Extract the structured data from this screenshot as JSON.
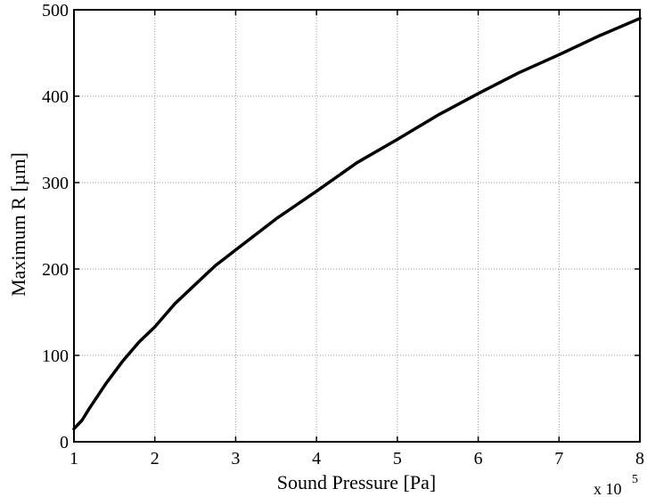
{
  "chart_data": {
    "type": "line",
    "title": "",
    "xlabel": "Sound Pressure [Pa]",
    "ylabel": "Maximum R [µm]",
    "x_multiplier_prefix": "x 10",
    "x_multiplier_exponent": "5",
    "xlim": [
      1,
      8
    ],
    "ylim": [
      0,
      500
    ],
    "xticks": [
      1,
      2,
      3,
      4,
      5,
      6,
      7,
      8
    ],
    "yticks": [
      0,
      100,
      200,
      300,
      400,
      500
    ],
    "grid": true,
    "series": [
      {
        "color": "#000000",
        "x": [
          1.0,
          1.1,
          1.2,
          1.4,
          1.6,
          1.8,
          2.0,
          2.25,
          2.5,
          2.75,
          3.0,
          3.5,
          4.0,
          4.5,
          5.0,
          5.5,
          6.0,
          6.5,
          7.0,
          7.5,
          8.0
        ],
        "y": [
          15,
          25,
          40,
          68,
          93,
          115,
          133,
          160,
          182,
          204,
          222,
          258,
          290,
          323,
          350,
          378,
          403,
          427,
          448,
          470,
          490
        ]
      }
    ]
  }
}
